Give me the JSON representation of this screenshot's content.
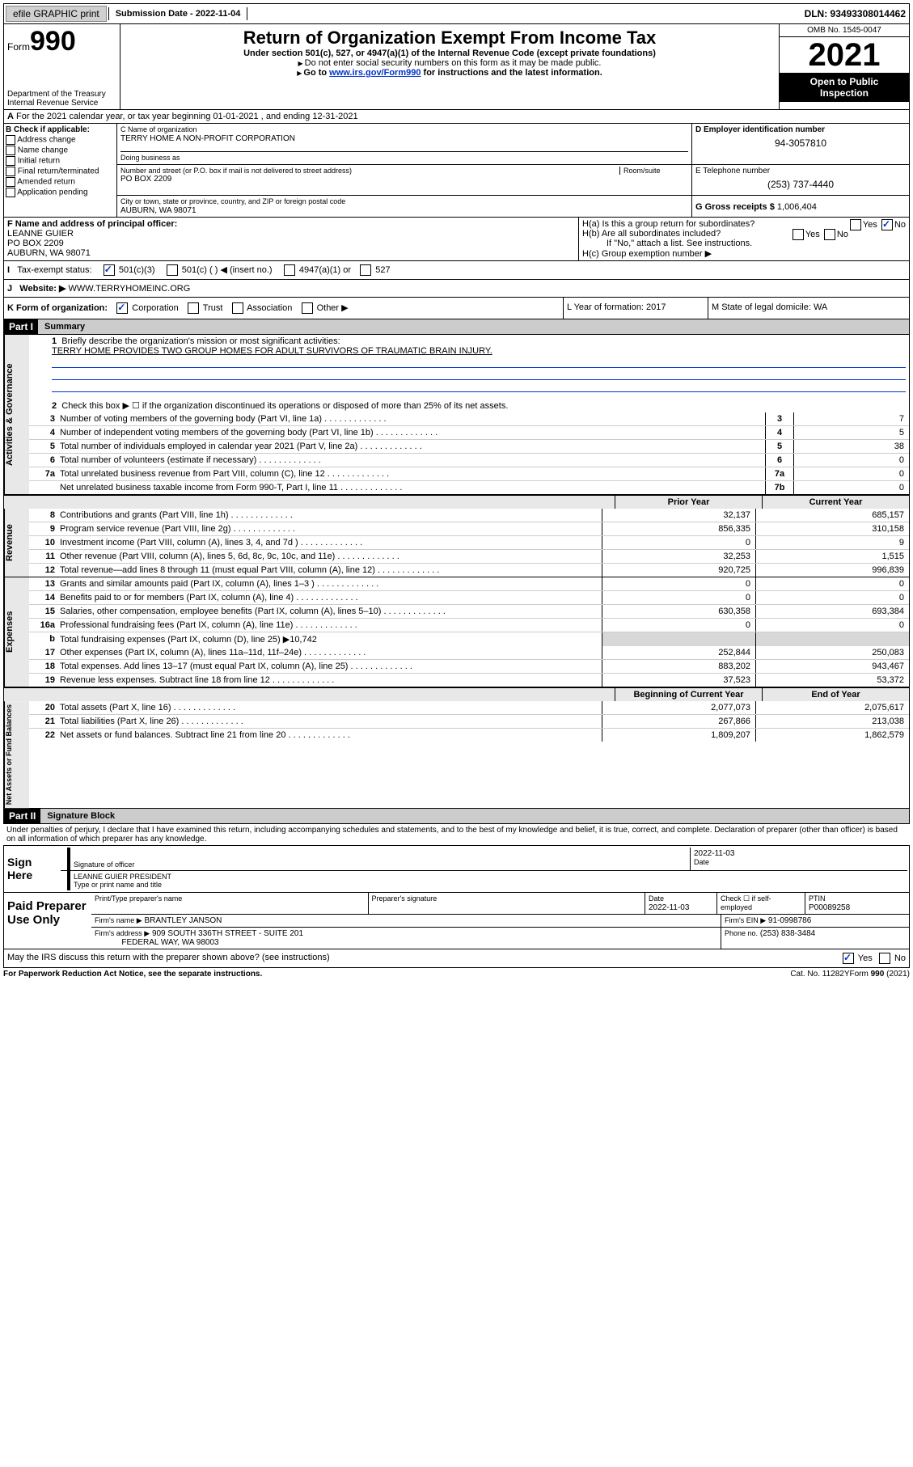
{
  "topbar": {
    "efile": "efile GRAPHIC print",
    "submission_label": "Submission Date - 2022-11-04",
    "dln": "DLN: 93493308014462"
  },
  "header": {
    "form_label": "Form",
    "form_num": "990",
    "dept": "Department of the Treasury",
    "irs": "Internal Revenue Service",
    "title": "Return of Organization Exempt From Income Tax",
    "sub1": "Under section 501(c), 527, or 4947(a)(1) of the Internal Revenue Code (except private foundations)",
    "sub2": "Do not enter social security numbers on this form as it may be made public.",
    "sub3_pre": "Go to ",
    "sub3_link": "www.irs.gov/Form990",
    "sub3_post": " for instructions and the latest information.",
    "omb": "OMB No. 1545-0047",
    "year": "2021",
    "inspect1": "Open to Public",
    "inspect2": "Inspection"
  },
  "row_a": "For the 2021 calendar year, or tax year beginning 01-01-2021   , and ending 12-31-2021",
  "col_b": {
    "title": "B Check if applicable:",
    "items": [
      "Address change",
      "Name change",
      "Initial return",
      "Final return/terminated",
      "Amended return",
      "Application pending"
    ]
  },
  "c_block": {
    "name_label": "C Name of organization",
    "name": "TERRY HOME A NON-PROFIT CORPORATION",
    "dba_label": "Doing business as",
    "addr_label": "Number and street (or P.O. box if mail is not delivered to street address)",
    "room_label": "Room/suite",
    "addr": "PO BOX 2209",
    "city_label": "City or town, state or province, country, and ZIP or foreign postal code",
    "city": "AUBURN, WA  98071"
  },
  "d_block": {
    "label": "D Employer identification number",
    "val": "94-3057810"
  },
  "e_block": {
    "label": "E Telephone number",
    "val": "(253) 737-4440"
  },
  "g_block": {
    "label": "G Gross receipts $",
    "val": "1,006,404"
  },
  "f_block": {
    "label": "F  Name and address of principal officer:",
    "name": "LEANNE GUIER",
    "addr": "PO BOX 2209",
    "city": "AUBURN, WA  98071"
  },
  "h_block": {
    "ha": "H(a)  Is this a group return for subordinates?",
    "hb": "H(b)  Are all subordinates included?",
    "hb_note": "If \"No,\" attach a list. See instructions.",
    "hc": "H(c)  Group exemption number ▶",
    "yes": "Yes",
    "no": "No"
  },
  "row_i": {
    "label": "Tax-exempt status:",
    "opts": [
      "501(c)(3)",
      "501(c) (  ) ◀ (insert no.)",
      "4947(a)(1) or",
      "527"
    ]
  },
  "row_j": {
    "label": "Website: ▶",
    "val": "WWW.TERRYHOMEINC.ORG"
  },
  "row_k": {
    "left": "K Form of organization:",
    "opts": [
      "Corporation",
      "Trust",
      "Association",
      "Other ▶"
    ],
    "mid": "L Year of formation: 2017",
    "right": "M State of legal domicile: WA"
  },
  "part1": {
    "hdr": "Part I",
    "title": "Summary",
    "l1a": "Briefly describe the organization's mission or most significant activities:",
    "l1b": "TERRY HOME PROVIDES TWO GROUP HOMES FOR ADULT SURVIVORS OF TRAUMATIC BRAIN INJURY.",
    "l2": "Check this box ▶ ☐  if the organization discontinued its operations or disposed of more than 25% of its net assets.",
    "lines_top": [
      {
        "n": "3",
        "d": "Number of voting members of the governing body (Part VI, line 1a)",
        "box": "3",
        "v": "7"
      },
      {
        "n": "4",
        "d": "Number of independent voting members of the governing body (Part VI, line 1b)",
        "box": "4",
        "v": "5"
      },
      {
        "n": "5",
        "d": "Total number of individuals employed in calendar year 2021 (Part V, line 2a)",
        "box": "5",
        "v": "38"
      },
      {
        "n": "6",
        "d": "Total number of volunteers (estimate if necessary)",
        "box": "6",
        "v": "0"
      },
      {
        "n": "7a",
        "d": "Total unrelated business revenue from Part VIII, column (C), line 12",
        "box": "7a",
        "v": "0"
      },
      {
        "n": "",
        "d": "Net unrelated business taxable income from Form 990-T, Part I, line 11",
        "box": "7b",
        "v": "0"
      }
    ],
    "col_hdr_prior": "Prior Year",
    "col_hdr_curr": "Current Year",
    "revenue": [
      {
        "n": "8",
        "d": "Contributions and grants (Part VIII, line 1h)",
        "p": "32,137",
        "c": "685,157"
      },
      {
        "n": "9",
        "d": "Program service revenue (Part VIII, line 2g)",
        "p": "856,335",
        "c": "310,158"
      },
      {
        "n": "10",
        "d": "Investment income (Part VIII, column (A), lines 3, 4, and 7d )",
        "p": "0",
        "c": "9"
      },
      {
        "n": "11",
        "d": "Other revenue (Part VIII, column (A), lines 5, 6d, 8c, 9c, 10c, and 11e)",
        "p": "32,253",
        "c": "1,515"
      },
      {
        "n": "12",
        "d": "Total revenue—add lines 8 through 11 (must equal Part VIII, column (A), line 12)",
        "p": "920,725",
        "c": "996,839"
      }
    ],
    "expenses": [
      {
        "n": "13",
        "d": "Grants and similar amounts paid (Part IX, column (A), lines 1–3 )",
        "p": "0",
        "c": "0"
      },
      {
        "n": "14",
        "d": "Benefits paid to or for members (Part IX, column (A), line 4)",
        "p": "0",
        "c": "0"
      },
      {
        "n": "15",
        "d": "Salaries, other compensation, employee benefits (Part IX, column (A), lines 5–10)",
        "p": "630,358",
        "c": "693,384"
      },
      {
        "n": "16a",
        "d": "Professional fundraising fees (Part IX, column (A), line 11e)",
        "p": "0",
        "c": "0"
      }
    ],
    "l16b": "Total fundraising expenses (Part IX, column (D), line 25) ▶10,742",
    "expenses2": [
      {
        "n": "17",
        "d": "Other expenses (Part IX, column (A), lines 11a–11d, 11f–24e)",
        "p": "252,844",
        "c": "250,083"
      },
      {
        "n": "18",
        "d": "Total expenses. Add lines 13–17 (must equal Part IX, column (A), line 25)",
        "p": "883,202",
        "c": "943,467"
      },
      {
        "n": "19",
        "d": "Revenue less expenses. Subtract line 18 from line 12",
        "p": "37,523",
        "c": "53,372"
      }
    ],
    "col_hdr_beg": "Beginning of Current Year",
    "col_hdr_end": "End of Year",
    "assets": [
      {
        "n": "20",
        "d": "Total assets (Part X, line 16)",
        "p": "2,077,073",
        "c": "2,075,617"
      },
      {
        "n": "21",
        "d": "Total liabilities (Part X, line 26)",
        "p": "267,866",
        "c": "213,038"
      },
      {
        "n": "22",
        "d": "Net assets or fund balances. Subtract line 21 from line 20",
        "p": "1,809,207",
        "c": "1,862,579"
      }
    ],
    "sidelabels": {
      "act": "Activities & Governance",
      "rev": "Revenue",
      "exp": "Expenses",
      "net": "Net Assets or Fund Balances"
    }
  },
  "part2": {
    "hdr": "Part II",
    "title": "Signature Block",
    "decl": "Under penalties of perjury, I declare that I have examined this return, including accompanying schedules and statements, and to the best of my knowledge and belief, it is true, correct, and complete. Declaration of preparer (other than officer) is based on all information of which preparer has any knowledge.",
    "sign_here": "Sign Here",
    "sig_officer": "Signature of officer",
    "sig_date": "2022-11-03",
    "date_lbl": "Date",
    "sig_name": "LEANNE GUIER  PRESIDENT",
    "sig_name_lbl": "Type or print name and title",
    "paid": "Paid Preparer Use Only",
    "p_name_lbl": "Print/Type preparer's name",
    "p_sig_lbl": "Preparer's signature",
    "p_date_lbl": "Date",
    "p_date": "2022-11-03",
    "p_check": "Check ☐ if self-employed",
    "p_ptin_lbl": "PTIN",
    "p_ptin": "P00089258",
    "firm_name_lbl": "Firm's name    ▶",
    "firm_name": "BRANTLEY JANSON",
    "firm_ein_lbl": "Firm's EIN ▶",
    "firm_ein": "91-0998786",
    "firm_addr_lbl": "Firm's address ▶",
    "firm_addr1": "909 SOUTH 336TH STREET - SUITE 201",
    "firm_addr2": "FEDERAL WAY, WA  98003",
    "firm_phone_lbl": "Phone no.",
    "firm_phone": "(253) 838-3484",
    "may_irs": "May the IRS discuss this return with the preparer shown above? (see instructions)",
    "yes": "Yes",
    "no": "No"
  },
  "footer": {
    "l": "For Paperwork Reduction Act Notice, see the separate instructions.",
    "m": "Cat. No. 11282Y",
    "r": "Form 990 (2021)"
  }
}
